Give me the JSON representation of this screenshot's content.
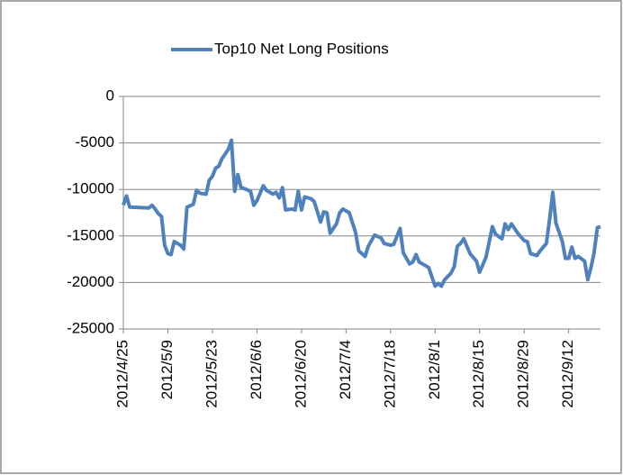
{
  "chart_data": {
    "type": "line",
    "x": [
      "2012/4/25",
      "2012/4/26",
      "2012/4/27",
      "2012/5/3",
      "2012/5/4",
      "2012/5/5",
      "2012/5/6",
      "2012/5/7",
      "2012/5/8",
      "2012/5/9",
      "2012/5/10",
      "2012/5/11",
      "2012/5/13",
      "2012/5/14",
      "2012/5/15",
      "2012/5/17",
      "2012/5/18",
      "2012/5/19",
      "2012/5/21",
      "2012/5/22",
      "2012/5/23",
      "2012/5/24",
      "2012/5/25",
      "2012/5/26",
      "2012/5/28",
      "2012/5/29",
      "2012/5/30",
      "2012/5/31",
      "2012/6/1",
      "2012/6/2",
      "2012/6/4",
      "2012/6/5",
      "2012/6/6",
      "2012/6/8",
      "2012/6/9",
      "2012/6/11",
      "2012/6/12",
      "2012/6/13",
      "2012/6/14",
      "2012/6/15",
      "2012/6/17",
      "2012/6/18",
      "2012/6/19",
      "2012/6/20",
      "2012/6/21",
      "2012/6/23",
      "2012/6/24",
      "2012/6/26",
      "2012/6/27",
      "2012/6/28",
      "2012/6/29",
      "2012/7/1",
      "2012/7/2",
      "2012/7/3",
      "2012/7/5",
      "2012/7/7",
      "2012/7/8",
      "2012/7/10",
      "2012/7/11",
      "2012/7/13",
      "2012/7/15",
      "2012/7/16",
      "2012/7/18",
      "2012/7/19",
      "2012/7/21",
      "2012/7/22",
      "2012/7/24",
      "2012/7/25",
      "2012/7/26",
      "2012/7/27",
      "2012/7/29",
      "2012/7/30",
      "2012/8/1",
      "2012/8/2",
      "2012/8/3",
      "2012/8/4",
      "2012/8/6",
      "2012/8/7",
      "2012/8/8",
      "2012/8/9",
      "2012/8/10",
      "2012/8/12",
      "2012/8/14",
      "2012/8/15",
      "2012/8/17",
      "2012/8/19",
      "2012/8/20",
      "2012/8/22",
      "2012/8/23",
      "2012/8/24",
      "2012/8/25",
      "2012/8/27",
      "2012/8/29",
      "2012/8/30",
      "2012/8/31",
      "2012/9/2",
      "2012/9/3",
      "2012/9/5",
      "2012/9/6",
      "2012/9/7",
      "2012/9/8",
      "2012/9/10",
      "2012/9/11",
      "2012/9/12",
      "2012/9/13",
      "2012/9/14",
      "2012/9/15",
      "2012/9/17",
      "2012/9/18",
      "2012/9/19",
      "2012/9/20",
      "2012/9/21",
      "2012/9/22"
    ],
    "series": [
      {
        "name": "Top10 Net Long Positions",
        "color": "#4f81bd",
        "values": [
          -11700,
          -10700,
          -11900,
          -12000,
          -11700,
          -12100,
          -12600,
          -12900,
          -16000,
          -16900,
          -17000,
          -15600,
          -16000,
          -16400,
          -11900,
          -11600,
          -10100,
          -10400,
          -10500,
          -9000,
          -8600,
          -7700,
          -7500,
          -6700,
          -5700,
          -4700,
          -10200,
          -8400,
          -9800,
          -9900,
          -10200,
          -11700,
          -11200,
          -9600,
          -10100,
          -10500,
          -10300,
          -10900,
          -9800,
          -12200,
          -12100,
          -12200,
          -10200,
          -12200,
          -10800,
          -11000,
          -11300,
          -13500,
          -12400,
          -12500,
          -14700,
          -13700,
          -12500,
          -12100,
          -12500,
          -14600,
          -16600,
          -17200,
          -16100,
          -14900,
          -15200,
          -15800,
          -16000,
          -15900,
          -14200,
          -16800,
          -18000,
          -17800,
          -17000,
          -17800,
          -18200,
          -18400,
          -20400,
          -20100,
          -20400,
          -19700,
          -19000,
          -18300,
          -16100,
          -15800,
          -15300,
          -16900,
          -17700,
          -18900,
          -17300,
          -14000,
          -14800,
          -15300,
          -13700,
          -14300,
          -13700,
          -14700,
          -15500,
          -15600,
          -16900,
          -17100,
          -16600,
          -15800,
          -13200,
          -10300,
          -13600,
          -15600,
          -17400,
          -17400,
          -16200,
          -17400,
          -17200,
          -17700,
          -19700,
          -18400,
          -16800,
          -14100,
          -14000
        ]
      }
    ],
    "xlim": [
      "2012/4/25",
      "2012/9/22"
    ],
    "xticks": [
      "2012/4/25",
      "2012/5/9",
      "2012/5/23",
      "2012/6/6",
      "2012/6/20",
      "2012/7/4",
      "2012/7/18",
      "2012/8/1",
      "2012/8/15",
      "2012/8/29",
      "2012/9/12"
    ],
    "ylim": [
      -25000,
      0
    ],
    "yticks": [
      -25000,
      -20000,
      -15000,
      -10000,
      -5000,
      0
    ],
    "grid": true,
    "legend": "top"
  }
}
